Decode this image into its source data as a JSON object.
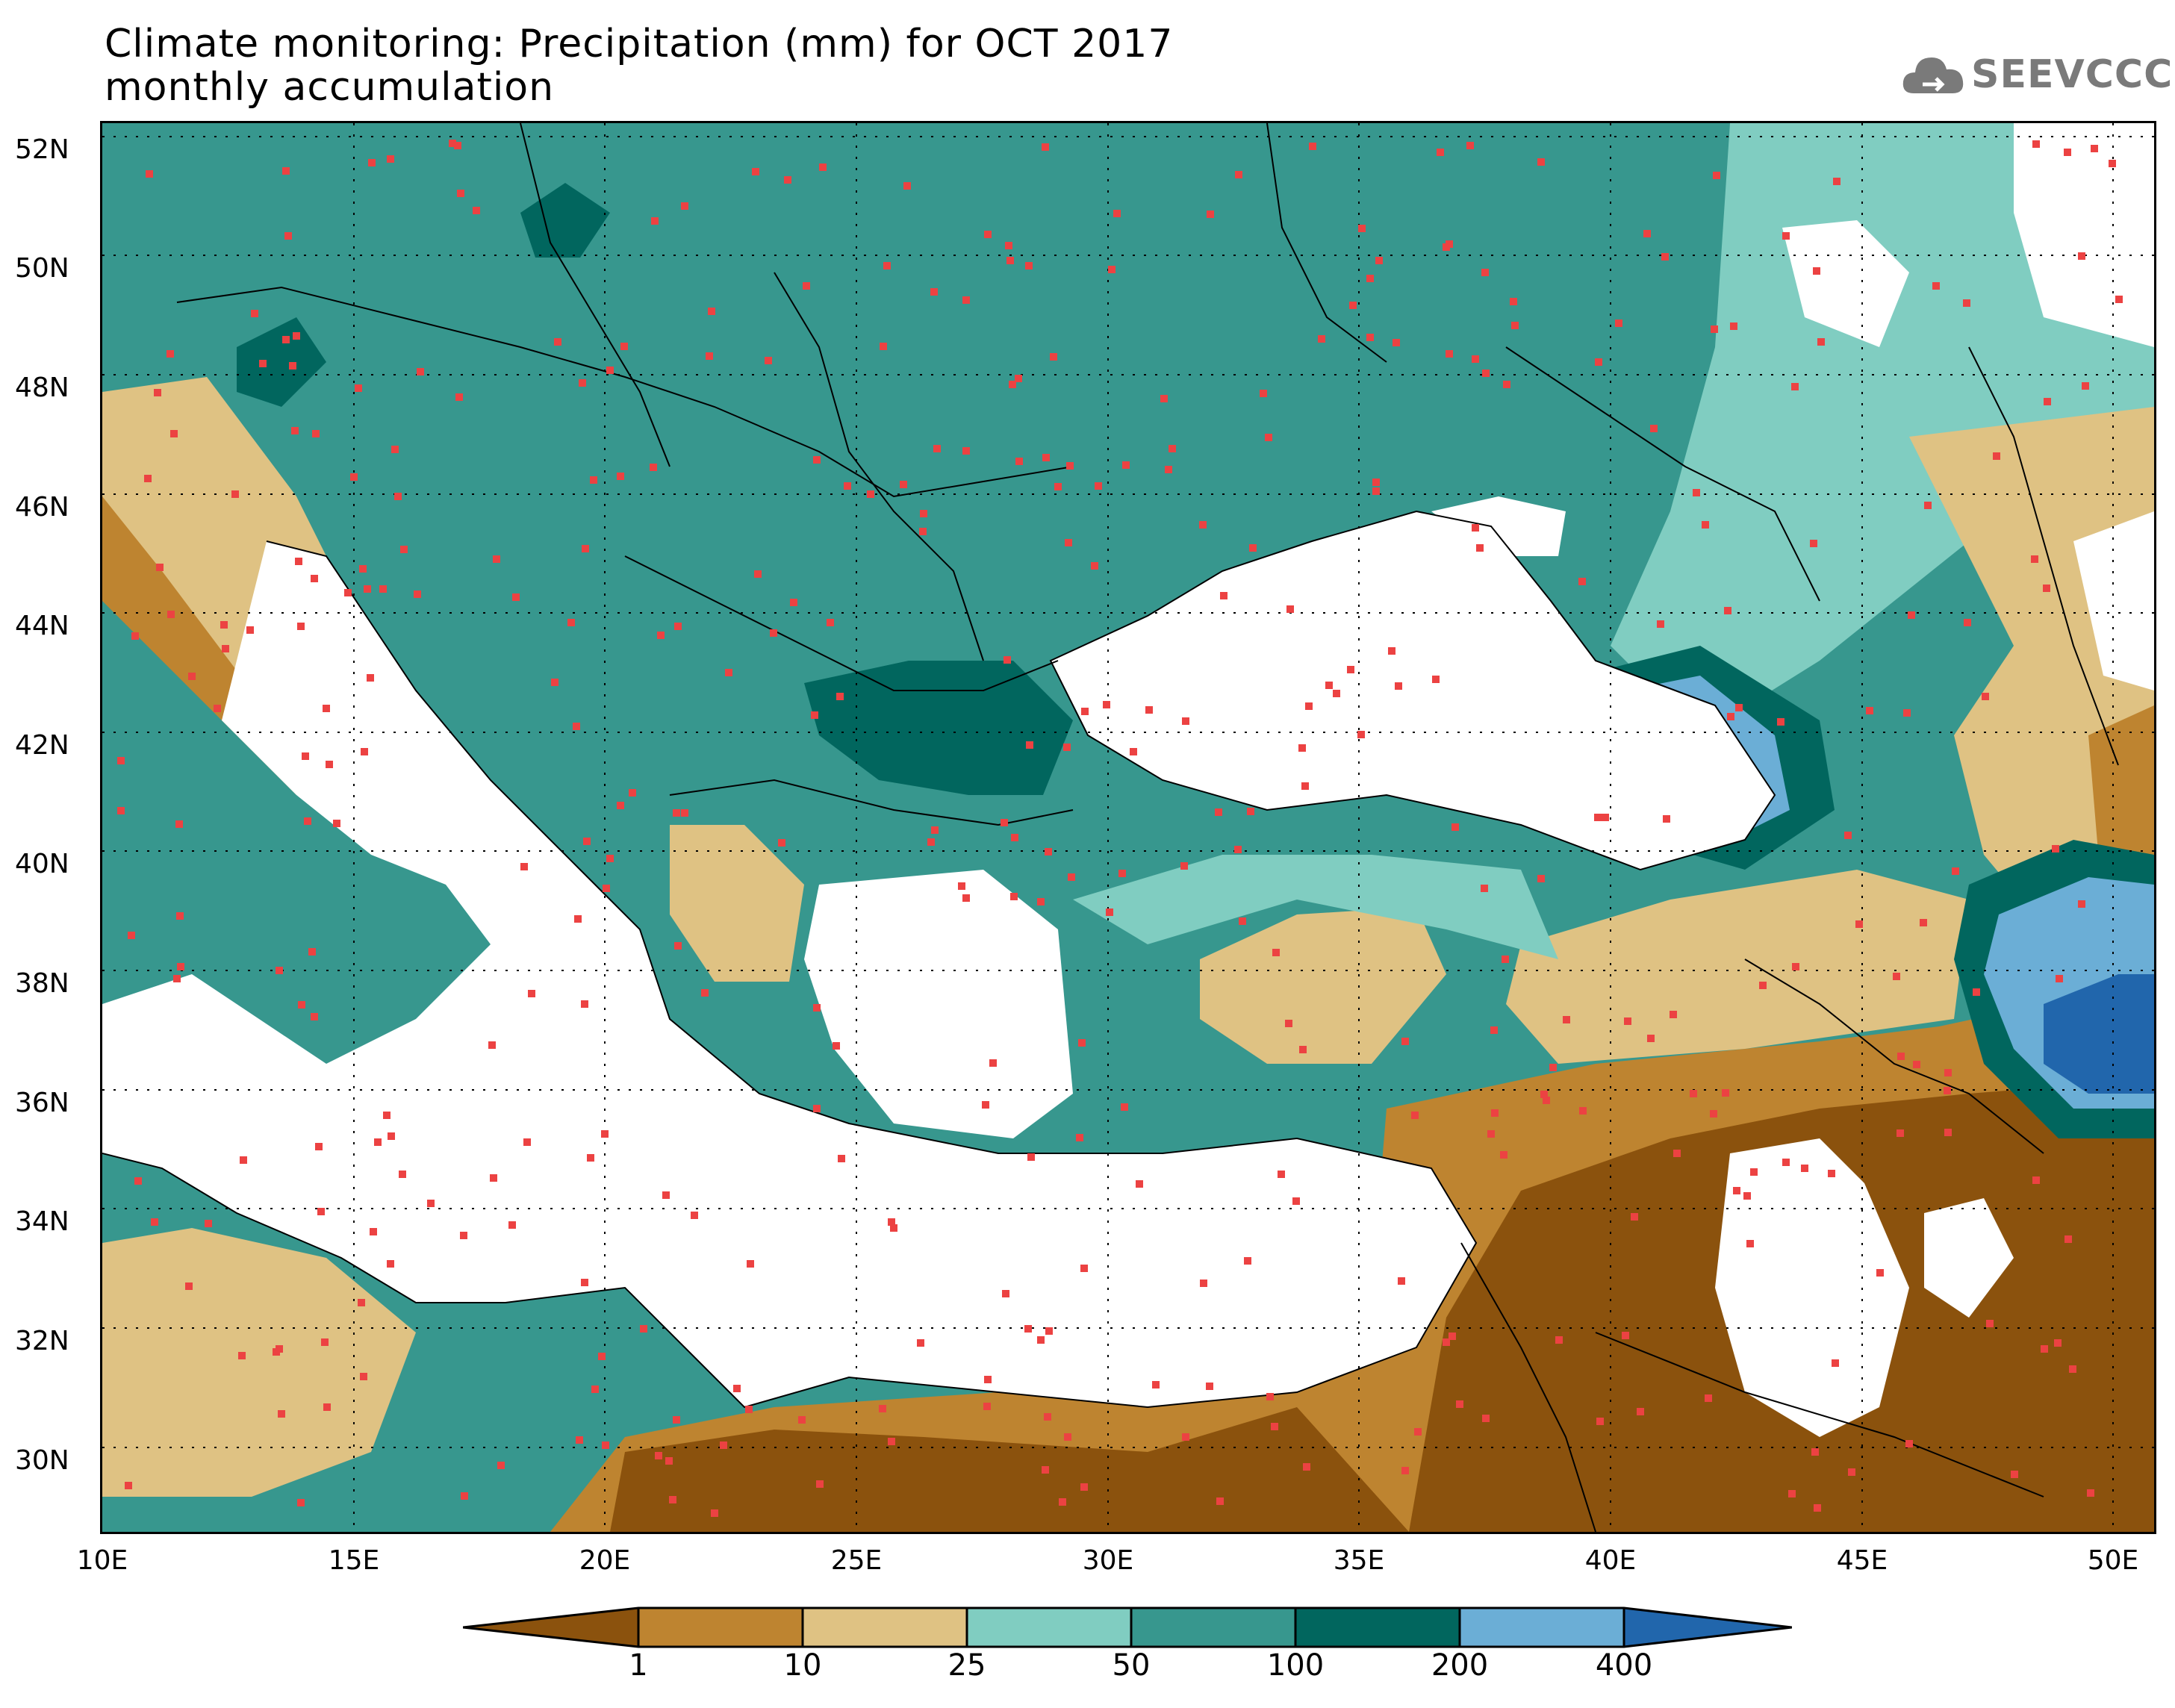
{
  "title": {
    "line1": "Climate monitoring: Precipitation (mm) for OCT 2017",
    "line2": "monthly accumulation"
  },
  "logo": {
    "text": "SEEVCCC",
    "icon": "cloud-icon"
  },
  "map": {
    "region": "South-East Europe, Black Sea, Eastern Mediterranean, Middle East",
    "lat_labels": [
      "52N",
      "50N",
      "48N",
      "46N",
      "44N",
      "42N",
      "40N",
      "38N",
      "36N",
      "34N",
      "32N",
      "30N"
    ],
    "lon_labels": [
      "10E",
      "15E",
      "20E",
      "25E",
      "30E",
      "35E",
      "40E",
      "45E",
      "50E"
    ],
    "extent": {
      "lon_min": 10,
      "lon_max": 51,
      "lat_min": 29,
      "lat_max": 52.5
    },
    "station_marker_color": "#ec4242",
    "no_data_color": "#ffffff"
  },
  "colorbar": {
    "labels": [
      "1",
      "10",
      "25",
      "50",
      "100",
      "200",
      "400"
    ],
    "colors": [
      "#8b520d",
      "#be8430",
      "#dfc283",
      "#80cdc1",
      "#37978e",
      "#01665e",
      "#6baed6",
      "#2166ac"
    ]
  }
}
